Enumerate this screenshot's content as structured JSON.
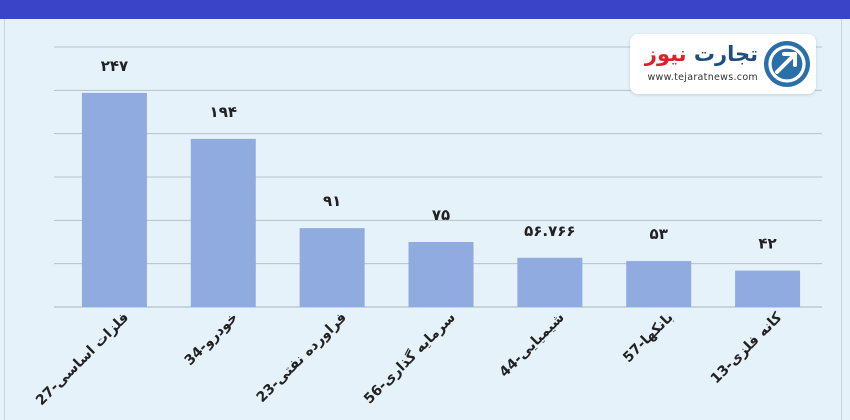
{
  "brand": {
    "name_part1": "تجارت",
    "name_part2": "نیوز",
    "url": "www.tejaratnews.com",
    "color_primary": "#1f4f7c",
    "color_accent": "#d8232a"
  },
  "colors": {
    "header_band": "#3a44c8",
    "background": "#e6f2fa",
    "bar": "#8fabdf",
    "gridline": "#b5c2cd"
  },
  "chart_data": {
    "type": "bar",
    "categories": [
      "27-فلزات اساسی",
      "34-خودرو",
      "23-فراورده نفتی",
      "56-سرمایه گذاری",
      "44-شیمیایی",
      "57-بانکها",
      "13-کانه فلزی"
    ],
    "values": [
      247,
      194,
      91,
      75,
      56.766,
      53,
      42
    ],
    "value_labels": [
      "۲۴۷",
      "۱۹۴",
      "۹۱",
      "۷۵",
      "۵۶.۷۶۶",
      "۵۳",
      "۴۲"
    ],
    "ylim": [
      0,
      300
    ],
    "grid": true,
    "legend": "none"
  }
}
